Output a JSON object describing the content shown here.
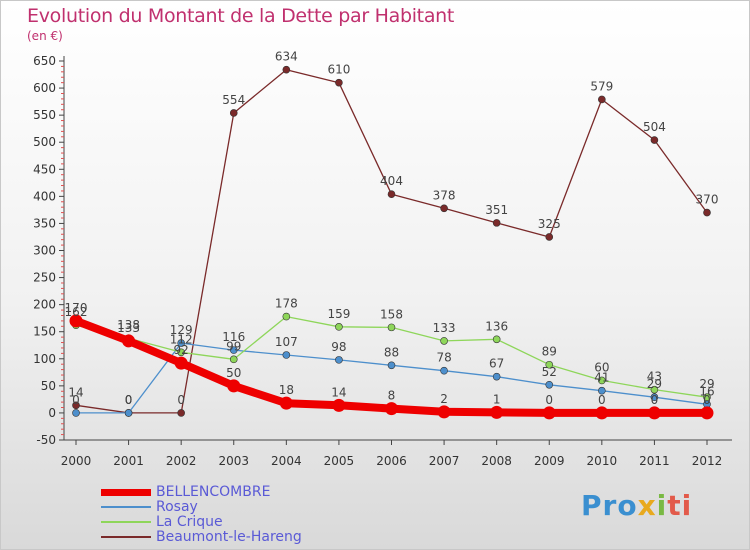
{
  "title": "Evolution du Montant de la Dette par Habitant",
  "subtitle": "(en €)",
  "brand": {
    "text": "Proxiti",
    "parts": [
      "Pro",
      "x",
      "i",
      "ti"
    ]
  },
  "chart_data": {
    "type": "line",
    "title": "Evolution du Montant de la Dette par Habitant",
    "ylabel": "(en €)",
    "xlabel": "",
    "x": [
      2000,
      2001,
      2002,
      2003,
      2004,
      2005,
      2006,
      2007,
      2008,
      2009,
      2010,
      2011,
      2012
    ],
    "ylim": [
      -50,
      650
    ],
    "yticks": [
      -50,
      0,
      50,
      100,
      150,
      200,
      250,
      300,
      350,
      400,
      450,
      500,
      550,
      600,
      650
    ],
    "grid": false,
    "legend_position": "bottom-left",
    "series": [
      {
        "name": "Beaumont-le-Hareng",
        "color": "#7a2a2a",
        "values": [
          14,
          0,
          0,
          554,
          634,
          610,
          404,
          378,
          351,
          325,
          579,
          504,
          370
        ]
      },
      {
        "name": "Rosay",
        "color": "#4d8fcc",
        "values": [
          0,
          0,
          129,
          116,
          107,
          98,
          88,
          78,
          67,
          52,
          41,
          29,
          16
        ]
      },
      {
        "name": "La Crique",
        "color": "#8ed65a",
        "values": [
          162,
          138,
          112,
          99,
          178,
          159,
          158,
          133,
          136,
          89,
          60,
          43,
          29
        ]
      },
      {
        "name": "BELLENCOMBRE",
        "color": "#ee0000",
        "values": [
          170,
          133,
          92,
          50,
          18,
          14,
          8,
          2,
          1,
          0,
          0,
          0,
          0
        ]
      }
    ],
    "data_labels": [
      {
        "series": "Beaumont-le-Hareng",
        "x": 2000,
        "text": "14"
      },
      {
        "series": "Beaumont-le-Hareng",
        "x": 2001,
        "text": "0"
      },
      {
        "series": "Beaumont-le-Hareng",
        "x": 2002,
        "text": "0"
      },
      {
        "series": "Beaumont-le-Hareng",
        "x": 2003,
        "text": "554"
      },
      {
        "series": "Beaumont-le-Hareng",
        "x": 2004,
        "text": "634"
      },
      {
        "series": "Beaumont-le-Hareng",
        "x": 2005,
        "text": "610"
      },
      {
        "series": "Beaumont-le-Hareng",
        "x": 2006,
        "text": "404"
      },
      {
        "series": "Beaumont-le-Hareng",
        "x": 2007,
        "text": "378"
      },
      {
        "series": "Beaumont-le-Hareng",
        "x": 2008,
        "text": "351"
      },
      {
        "series": "Beaumont-le-Hareng",
        "x": 2009,
        "text": "325"
      },
      {
        "series": "Beaumont-le-Hareng",
        "x": 2010,
        "text": "579"
      },
      {
        "series": "Beaumont-le-Hareng",
        "x": 2011,
        "text": "504"
      },
      {
        "series": "Beaumont-le-Hareng",
        "x": 2012,
        "text": "370"
      },
      {
        "series": "Rosay",
        "x": 2000,
        "text": "0"
      },
      {
        "series": "Rosay",
        "x": 2001,
        "text": "0"
      },
      {
        "series": "Rosay",
        "x": 2002,
        "text": "129"
      },
      {
        "series": "Rosay",
        "x": 2003,
        "text": "116"
      },
      {
        "series": "Rosay",
        "x": 2004,
        "text": "107"
      },
      {
        "series": "Rosay",
        "x": 2005,
        "text": "98"
      },
      {
        "series": "Rosay",
        "x": 2006,
        "text": "88"
      },
      {
        "series": "Rosay",
        "x": 2007,
        "text": "78"
      },
      {
        "series": "Rosay",
        "x": 2008,
        "text": "67"
      },
      {
        "series": "Rosay",
        "x": 2009,
        "text": "52"
      },
      {
        "series": "Rosay",
        "x": 2010,
        "text": "41"
      },
      {
        "series": "Rosay",
        "x": 2011,
        "text": "29"
      },
      {
        "series": "Rosay",
        "x": 2012,
        "text": "16"
      },
      {
        "series": "La Crique",
        "x": 2000,
        "text": "162"
      },
      {
        "series": "La Crique",
        "x": 2001,
        "text": "138"
      },
      {
        "series": "La Crique",
        "x": 2002,
        "text": "112"
      },
      {
        "series": "La Crique",
        "x": 2003,
        "text": "99"
      },
      {
        "series": "La Crique",
        "x": 2004,
        "text": "178"
      },
      {
        "series": "La Crique",
        "x": 2005,
        "text": "159"
      },
      {
        "series": "La Crique",
        "x": 2006,
        "text": "158"
      },
      {
        "series": "La Crique",
        "x": 2007,
        "text": "133"
      },
      {
        "series": "La Crique",
        "x": 2008,
        "text": "136"
      },
      {
        "series": "La Crique",
        "x": 2009,
        "text": "89"
      },
      {
        "series": "La Crique",
        "x": 2010,
        "text": "60"
      },
      {
        "series": "La Crique",
        "x": 2011,
        "text": "43"
      },
      {
        "series": "La Crique",
        "x": 2012,
        "text": "29"
      },
      {
        "series": "BELLENCOMBRE",
        "x": 2000,
        "text": "170"
      },
      {
        "series": "BELLENCOMBRE",
        "x": 2001,
        "text": "133"
      },
      {
        "series": "BELLENCOMBRE",
        "x": 2002,
        "text": "92"
      },
      {
        "series": "BELLENCOMBRE",
        "x": 2003,
        "text": "50"
      },
      {
        "series": "BELLENCOMBRE",
        "x": 2004,
        "text": "18"
      },
      {
        "series": "BELLENCOMBRE",
        "x": 2005,
        "text": "14"
      },
      {
        "series": "BELLENCOMBRE",
        "x": 2006,
        "text": "8"
      },
      {
        "series": "BELLENCOMBRE",
        "x": 2007,
        "text": "2"
      },
      {
        "series": "BELLENCOMBRE",
        "x": 2008,
        "text": "1"
      },
      {
        "series": "BELLENCOMBRE",
        "x": 2009,
        "text": "0"
      },
      {
        "series": "BELLENCOMBRE",
        "x": 2010,
        "text": "0"
      },
      {
        "series": "BELLENCOMBRE",
        "x": 2011,
        "text": "0"
      },
      {
        "series": "BELLENCOMBRE",
        "x": 2012,
        "text": "0"
      }
    ]
  },
  "legend": [
    {
      "label": "BELLENCOMBRE",
      "color": "#ee0000"
    },
    {
      "label": "Rosay",
      "color": "#4d8fcc"
    },
    {
      "label": "La Crique",
      "color": "#8ed65a"
    },
    {
      "label": "Beaumont-le-Hareng",
      "color": "#7a2a2a"
    }
  ]
}
